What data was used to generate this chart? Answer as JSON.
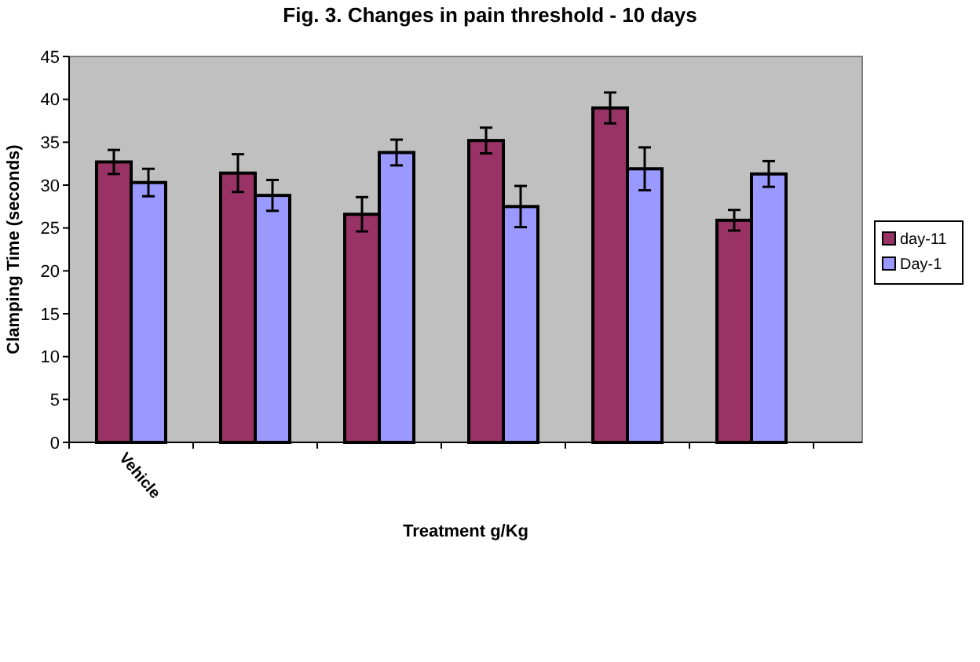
{
  "chart_data": {
    "type": "bar",
    "title": "Fig. 3. Changes in pain threshold - 10 days",
    "xlabel": "Treatment g/Kg",
    "ylabel": "Clamping Time (seconds)",
    "categories": [
      "Vehicle",
      null,
      null,
      null,
      null,
      null
    ],
    "series": [
      {
        "name": "day-11",
        "color": "#993366",
        "values": [
          32.7,
          31.4,
          26.6,
          35.2,
          39.0,
          25.9
        ],
        "errors": [
          1.4,
          2.2,
          2.0,
          1.5,
          1.8,
          1.2
        ]
      },
      {
        "name": "Day-1",
        "color": "#9999ff",
        "values": [
          30.3,
          28.8,
          33.8,
          27.5,
          31.9,
          31.3
        ],
        "errors": [
          1.6,
          1.8,
          1.5,
          2.4,
          2.5,
          1.5
        ]
      }
    ],
    "ylim": [
      0,
      45
    ],
    "yticks": [
      0,
      5,
      10,
      15,
      20,
      25,
      30,
      35,
      40,
      45
    ],
    "grid": false,
    "legend": "right"
  }
}
